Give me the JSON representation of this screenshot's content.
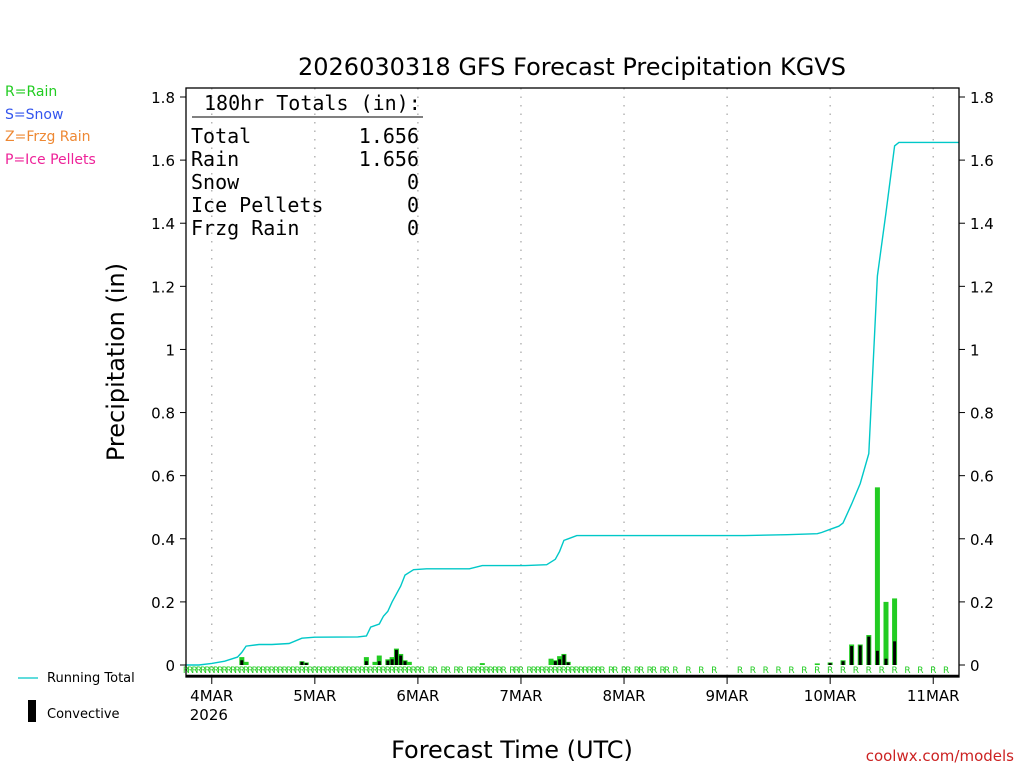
{
  "colors": {
    "running_total": "#00c8c8",
    "rain": "#22cc22",
    "snow": "#3355ee",
    "frzg_rain": "#ee8833",
    "ice_pellets": "#ee2299",
    "convective": "#000000",
    "grid": "#aaaaaa",
    "credit": "#cc2222"
  },
  "legend_top": {
    "rain": "R=Rain",
    "snow": "S=Snow",
    "frzg_rain": "Z=Frzg Rain",
    "ice_pellets": "P=Ice Pellets"
  },
  "legend_bottom": {
    "running_total": "Running Total",
    "convective": "Convective"
  },
  "totals": {
    "header": "180hr Totals (in):",
    "rows": [
      {
        "label": "Total",
        "value": "1.656"
      },
      {
        "label": "Rain",
        "value": "1.656"
      },
      {
        "label": "Snow",
        "value": "0"
      },
      {
        "label": "Ice Pellets",
        "value": "0"
      },
      {
        "label": "Frzg Rain",
        "value": "0"
      }
    ]
  },
  "credit": "coolwx.com/models",
  "chart_data": {
    "type": "bar",
    "title": "2026030318 GFS Forecast Precipitation KGVS",
    "xlabel": "Forecast Time (UTC)",
    "ylabel": "Precipitation (in)",
    "ylim": [
      0,
      1.8
    ],
    "xlim_hours": [
      0,
      180
    ],
    "yticks": [
      "0",
      "0.2",
      "0.4",
      "0.6",
      "0.8",
      "1",
      "1.2",
      "1.4",
      "1.6",
      "1.8"
    ],
    "xticks": [
      {
        "hour": 6,
        "label": "4MAR",
        "sub": "2026"
      },
      {
        "hour": 30,
        "label": "5MAR",
        "sub": ""
      },
      {
        "hour": 54,
        "label": "6MAR",
        "sub": ""
      },
      {
        "hour": 78,
        "label": "7MAR",
        "sub": ""
      },
      {
        "hour": 102,
        "label": "8MAR",
        "sub": ""
      },
      {
        "hour": 126,
        "label": "9MAR",
        "sub": ""
      },
      {
        "hour": 150,
        "label": "10MAR",
        "sub": ""
      },
      {
        "hour": 174,
        "label": "11MAR",
        "sub": ""
      }
    ],
    "precip_type_marker": "R",
    "series": [
      {
        "name": "Running Total",
        "type": "line",
        "points": [
          [
            0,
            0
          ],
          [
            3,
            0
          ],
          [
            6,
            0.005
          ],
          [
            9,
            0.012
          ],
          [
            12,
            0.025
          ],
          [
            13,
            0.04
          ],
          [
            14,
            0.06
          ],
          [
            17,
            0.065
          ],
          [
            20,
            0.065
          ],
          [
            24,
            0.068
          ],
          [
            27,
            0.085
          ],
          [
            30,
            0.088
          ],
          [
            40,
            0.089
          ],
          [
            42,
            0.092
          ],
          [
            43,
            0.12
          ],
          [
            45,
            0.13
          ],
          [
            46,
            0.155
          ],
          [
            47,
            0.17
          ],
          [
            48,
            0.2
          ],
          [
            50,
            0.25
          ],
          [
            51,
            0.285
          ],
          [
            53,
            0.302
          ],
          [
            56,
            0.305
          ],
          [
            66,
            0.305
          ],
          [
            69,
            0.315
          ],
          [
            72,
            0.315
          ],
          [
            79,
            0.315
          ],
          [
            84,
            0.318
          ],
          [
            86,
            0.335
          ],
          [
            87,
            0.36
          ],
          [
            88,
            0.395
          ],
          [
            89,
            0.4
          ],
          [
            91,
            0.41
          ],
          [
            100,
            0.41
          ],
          [
            125,
            0.41
          ],
          [
            130,
            0.41
          ],
          [
            140,
            0.413
          ],
          [
            147,
            0.416
          ],
          [
            148,
            0.42
          ],
          [
            150,
            0.43
          ],
          [
            152,
            0.44
          ],
          [
            153,
            0.45
          ],
          [
            155,
            0.51
          ],
          [
            157,
            0.575
          ],
          [
            159,
            0.67
          ],
          [
            161,
            1.233
          ],
          [
            163,
            1.434
          ],
          [
            165,
            1.645
          ],
          [
            166,
            1.656
          ],
          [
            180,
            1.656
          ]
        ]
      },
      {
        "name": "Rain",
        "type": "bar",
        "bars": [
          [
            13,
            0.025
          ],
          [
            14,
            0.01
          ],
          [
            27,
            0.012
          ],
          [
            28,
            0.008
          ],
          [
            42,
            0.025
          ],
          [
            44,
            0.01
          ],
          [
            45,
            0.03
          ],
          [
            47,
            0.018
          ],
          [
            48,
            0.025
          ],
          [
            49,
            0.052
          ],
          [
            50,
            0.035
          ],
          [
            51,
            0.015
          ],
          [
            52,
            0.01
          ],
          [
            69,
            0.006
          ],
          [
            85,
            0.02
          ],
          [
            86,
            0.015
          ],
          [
            87,
            0.028
          ],
          [
            88,
            0.035
          ],
          [
            89,
            0.01
          ],
          [
            147,
            0.005
          ],
          [
            150,
            0.008
          ],
          [
            153,
            0.015
          ],
          [
            155,
            0.065
          ],
          [
            157,
            0.065
          ],
          [
            159,
            0.095
          ],
          [
            161,
            0.563
          ],
          [
            163,
            0.2
          ],
          [
            165,
            0.211
          ]
        ]
      },
      {
        "name": "Convective",
        "type": "bar",
        "bars": [
          [
            13,
            0.015
          ],
          [
            27,
            0.01
          ],
          [
            28,
            0.006
          ],
          [
            42,
            0.012
          ],
          [
            45,
            0.012
          ],
          [
            47,
            0.014
          ],
          [
            48,
            0.018
          ],
          [
            49,
            0.048
          ],
          [
            50,
            0.03
          ],
          [
            51,
            0.012
          ],
          [
            86,
            0.012
          ],
          [
            87,
            0.018
          ],
          [
            88,
            0.032
          ],
          [
            89,
            0.008
          ],
          [
            150,
            0.006
          ],
          [
            153,
            0.012
          ],
          [
            155,
            0.06
          ],
          [
            157,
            0.062
          ],
          [
            159,
            0.09
          ],
          [
            161,
            0.045
          ],
          [
            163,
            0.02
          ],
          [
            165,
            0.075
          ]
        ]
      }
    ],
    "type_markers_hours": [
      0,
      1,
      2,
      3,
      4,
      5,
      6,
      7,
      8,
      9,
      10,
      11,
      12,
      13,
      14,
      15,
      16,
      17,
      18,
      19,
      20,
      21,
      22,
      23,
      24,
      25,
      26,
      27,
      28,
      29,
      30,
      31,
      32,
      33,
      34,
      35,
      36,
      37,
      38,
      39,
      40,
      41,
      42,
      43,
      44,
      45,
      46,
      47,
      48,
      49,
      50,
      51,
      52,
      53,
      54,
      55,
      57,
      58,
      60,
      61,
      63,
      64,
      66,
      67,
      68,
      69,
      70,
      71,
      72,
      73,
      74,
      76,
      77,
      78,
      80,
      81,
      82,
      83,
      84,
      85,
      86,
      87,
      88,
      89,
      90,
      91,
      92,
      93,
      94,
      95,
      96,
      97,
      99,
      100,
      102,
      103,
      105,
      106,
      108,
      109,
      111,
      112,
      114,
      117,
      120,
      123,
      129,
      132,
      135,
      138,
      141,
      144,
      147,
      150,
      153,
      156,
      159,
      162,
      165,
      168,
      171,
      174,
      177
    ]
  }
}
